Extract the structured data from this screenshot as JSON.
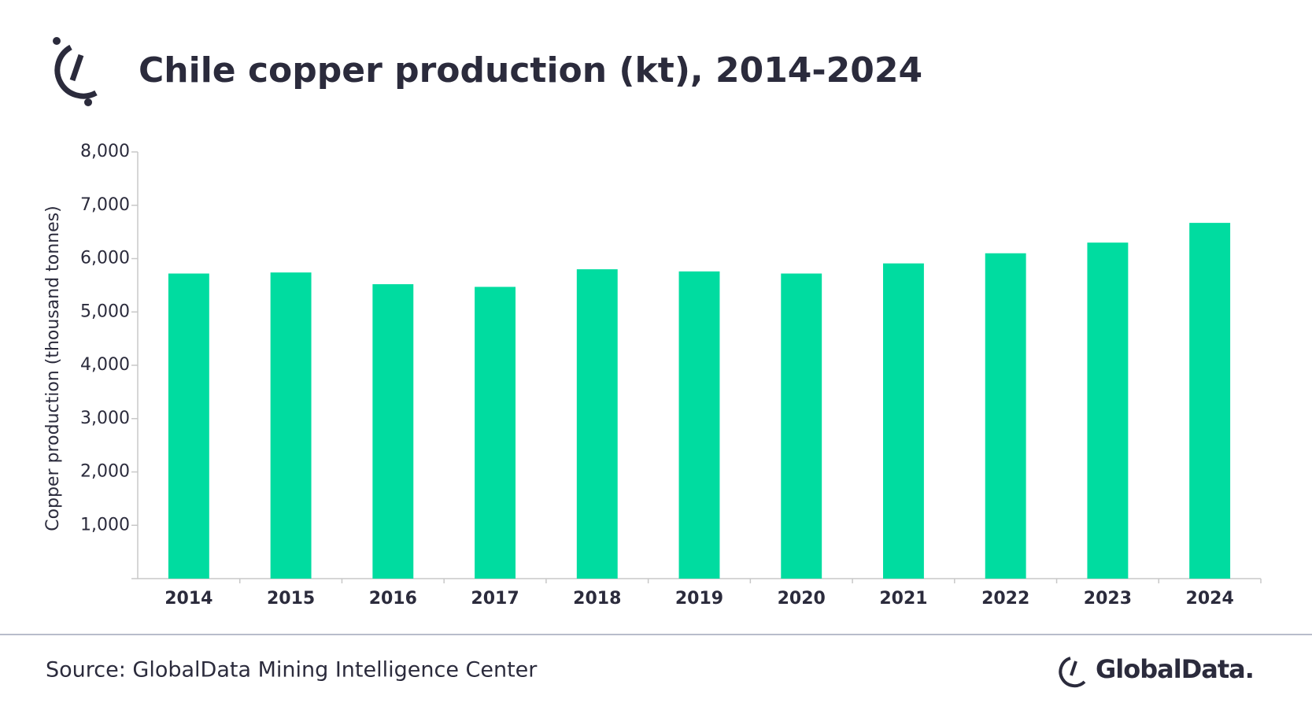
{
  "chart_data": {
    "type": "bar",
    "title": "Chile copper production (kt), 2014-2024",
    "y_label": "Copper production (thousand tonnes)",
    "categories": [
      "2014",
      "2015",
      "2016",
      "2017",
      "2018",
      "2019",
      "2020",
      "2021",
      "2022",
      "2023",
      "2024"
    ],
    "values": [
      5720,
      5740,
      5520,
      5470,
      5800,
      5760,
      5720,
      5910,
      6100,
      6300,
      6670
    ],
    "color": "#00dca0",
    "ylim": [
      0,
      8000
    ],
    "yticks": [
      {
        "value": 1000,
        "label": "1,000"
      },
      {
        "value": 2000,
        "label": "2,000"
      },
      {
        "value": 3000,
        "label": "3,000"
      },
      {
        "value": 4000,
        "label": "4,000"
      },
      {
        "value": 5000,
        "label": "5,000"
      },
      {
        "value": 6000,
        "label": "6,000"
      },
      {
        "value": 7000,
        "label": "7,000"
      },
      {
        "value": 8000,
        "label": "8,000"
      }
    ],
    "grid": false,
    "source": "Source: GlobalData Mining Intelligence Center",
    "brand": "GlobalData."
  }
}
